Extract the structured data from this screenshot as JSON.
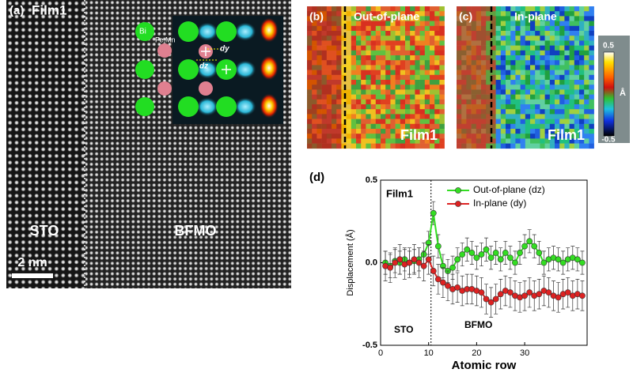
{
  "panel_a": {
    "label": "(a)",
    "title": "Film1",
    "atom_bi": "Bi",
    "atom_femn": "Fe,Mn",
    "dy": "dy",
    "dz": "dz",
    "left_region": "STO",
    "right_region": "BFMO",
    "scale_bar": "2 nm"
  },
  "panel_b": {
    "label": "(b)",
    "title": "Out-of-plane",
    "film": "Film1"
  },
  "panel_c": {
    "label": "(c)",
    "title": "In-plane",
    "film": "Film1"
  },
  "colorbar": {
    "max_label": "0.5",
    "unit": "Å",
    "min_label": "-0.5"
  },
  "chart_data": {
    "type": "line",
    "label": "(d)",
    "xlabel": "Atomic row",
    "ylabel": "Displacement (Å)",
    "xlim": [
      0,
      43
    ],
    "xticks": [
      0,
      10,
      20,
      30
    ],
    "ylim": [
      -0.5,
      0.5
    ],
    "yticks": [
      -0.5,
      {
        "value": 0,
        "label": "0.0"
      },
      0.5
    ],
    "interface_row": 10.5,
    "legend": "upper right",
    "annotations": [
      {
        "text": "Film1"
      },
      {
        "text": "STO"
      },
      {
        "text": "BFMO"
      }
    ],
    "x": [
      1,
      2,
      3,
      4,
      5,
      6,
      7,
      8,
      9,
      10,
      11,
      12,
      13,
      14,
      15,
      16,
      17,
      18,
      19,
      20,
      21,
      22,
      23,
      24,
      25,
      26,
      27,
      28,
      29,
      30,
      31,
      32,
      33,
      34,
      35,
      36,
      37,
      38,
      39,
      40,
      41,
      42
    ],
    "series": [
      {
        "name": "Out-of-plane (dz)",
        "color": "#33dd22",
        "error": 0.07,
        "values": [
          0.0,
          -0.02,
          0.01,
          0.0,
          0.02,
          0.0,
          0.01,
          0.02,
          0.05,
          0.12,
          0.3,
          0.1,
          -0.02,
          -0.05,
          -0.03,
          0.02,
          0.05,
          0.08,
          0.06,
          0.03,
          0.05,
          0.08,
          0.03,
          0.06,
          0.02,
          0.06,
          0.03,
          0.0,
          0.06,
          0.1,
          0.13,
          0.1,
          0.06,
          0.0,
          0.02,
          0.03,
          0.02,
          0.0,
          0.02,
          0.03,
          0.02,
          0.0
        ]
      },
      {
        "name": "In-plane (dy)",
        "color": "#dd2222",
        "error": 0.09,
        "values": [
          -0.02,
          -0.03,
          0.0,
          0.02,
          -0.01,
          0.0,
          0.02,
          0.0,
          -0.02,
          0.02,
          -0.05,
          -0.1,
          -0.12,
          -0.14,
          -0.16,
          -0.15,
          -0.17,
          -0.16,
          -0.16,
          -0.17,
          -0.18,
          -0.22,
          -0.24,
          -0.22,
          -0.19,
          -0.17,
          -0.18,
          -0.2,
          -0.21,
          -0.2,
          -0.18,
          -0.2,
          -0.19,
          -0.17,
          -0.18,
          -0.2,
          -0.21,
          -0.19,
          -0.18,
          -0.2,
          -0.19,
          -0.2
        ]
      }
    ]
  }
}
